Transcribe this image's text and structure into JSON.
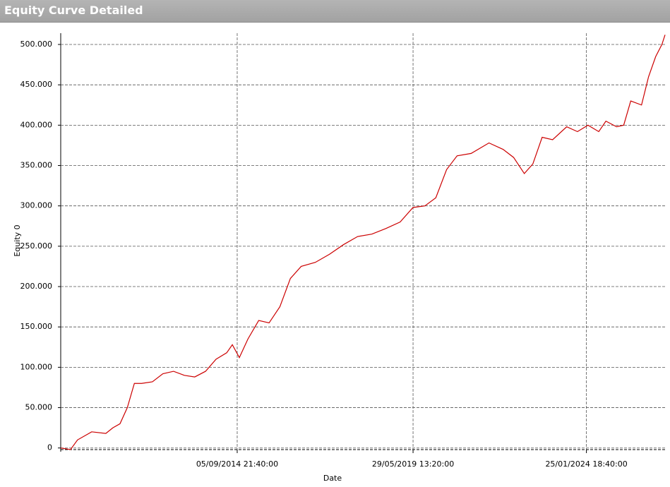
{
  "chart_data": {
    "type": "line",
    "title": "Equity Curve Detailed",
    "ylabel": "Equity 0",
    "xlabel": "Date",
    "color": "#cc0000",
    "grid": true,
    "x": [
      "2009-12-08",
      "2010-03-14",
      "2010-05-22",
      "2010-10-08",
      "2011-02-24",
      "2011-05-04",
      "2011-07-13",
      "2011-09-23",
      "2011-12-01",
      "2012-02-10",
      "2012-05-26",
      "2012-09-06",
      "2012-12-20",
      "2013-04-05",
      "2013-07-16",
      "2013-10-30",
      "2014-02-10",
      "2014-05-26",
      "2014-07-20",
      "2014-09-27",
      "2014-12-20",
      "2015-04-05",
      "2015-07-16",
      "2015-10-30",
      "2016-02-10",
      "2016-05-26",
      "2016-10-12",
      "2017-02-28",
      "2017-07-16",
      "2017-12-01",
      "2018-04-20",
      "2018-09-06",
      "2019-01-23",
      "2019-05-29",
      "2019-09-23",
      "2020-01-08",
      "2020-04-23",
      "2020-08-04",
      "2020-12-20",
      "2021-06-13",
      "2021-10-30",
      "2022-02-10",
      "2022-05-26",
      "2022-08-18",
      "2022-11-17",
      "2023-02-28",
      "2023-07-16",
      "2023-10-30",
      "2024-02-10",
      "2024-05-26",
      "2024-08-04",
      "2024-11-17",
      "2025-01-26",
      "2025-04-05",
      "2025-07-20",
      "2025-09-27",
      "2025-12-06",
      "2026-02-05",
      "2026-03-08"
    ],
    "values": [
      0,
      -2000,
      10000,
      20000,
      18000,
      25000,
      30000,
      50000,
      80000,
      80000,
      82000,
      92000,
      95000,
      90000,
      88000,
      95000,
      110000,
      118000,
      128000,
      112000,
      135000,
      158000,
      155000,
      175000,
      210000,
      225000,
      230000,
      240000,
      252000,
      262000,
      265000,
      272000,
      280000,
      298000,
      300000,
      310000,
      345000,
      362000,
      365000,
      378000,
      370000,
      360000,
      340000,
      352000,
      385000,
      382000,
      398000,
      392000,
      400000,
      392000,
      405000,
      398000,
      400000,
      430000,
      425000,
      460000,
      485000,
      500000,
      512000
    ],
    "xlim": [
      "2009-12-08",
      "2026-03-08"
    ],
    "xticks": [
      {
        "value": "2014-09-05T21:40:00",
        "label": "05/09/2014 21:40:00"
      },
      {
        "value": "2019-05-29T13:20:00",
        "label": "29/05/2019 13:20:00"
      },
      {
        "value": "2024-01-25T18:40:00",
        "label": "25/01/2024 18:40:00"
      }
    ],
    "ylim": [
      -2000,
      514000
    ],
    "yticks": [
      0,
      {
        "value": 50000,
        "label": "50.000"
      },
      {
        "value": 100000,
        "label": "100.000"
      },
      {
        "value": 150000,
        "label": "150.000"
      },
      {
        "value": 200000,
        "label": "200.000"
      },
      {
        "value": 250000,
        "label": "250.000"
      },
      {
        "value": 300000,
        "label": "300.000"
      },
      {
        "value": 350000,
        "label": "350.000"
      },
      {
        "value": 400000,
        "label": "400.000"
      },
      {
        "value": 450000,
        "label": "450.000"
      },
      {
        "value": 500000,
        "label": "500.000"
      }
    ]
  }
}
